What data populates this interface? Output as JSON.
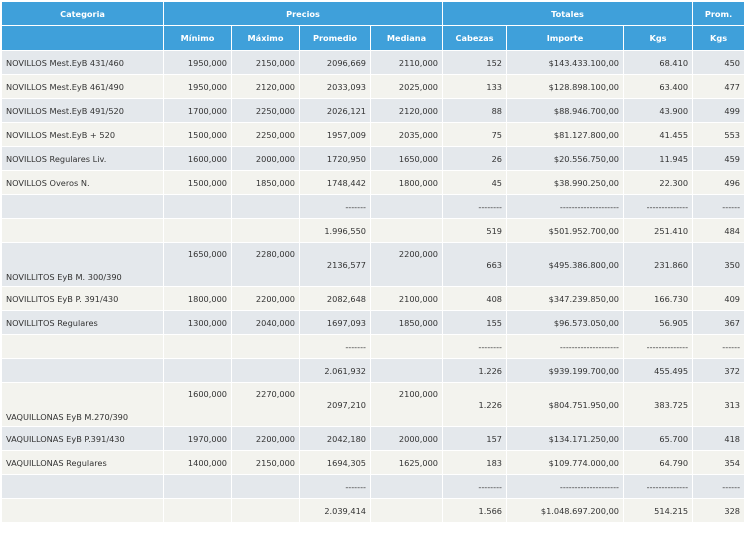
{
  "headers": {
    "categoria": "Categoria",
    "precios": "Precios",
    "totales": "Totales",
    "prom": "Prom.",
    "minimo": "Mínimo",
    "maximo": "Máximo",
    "promedio": "Promedio",
    "mediana": "Mediana",
    "cabezas": "Cabezas",
    "importe": "Importe",
    "kgs": "Kgs",
    "prom_kgs": "Kgs"
  },
  "rows": [
    {
      "cat": "NOVILLOS Mest.EyB 431/460",
      "min": "1950,000",
      "max": "2150,000",
      "prom": "2096,669",
      "med": "2110,000",
      "cab": "152",
      "imp": "$143.433.100,00",
      "kgs": "68.410",
      "pk": "450"
    },
    {
      "cat": "NOVILLOS Mest.EyB 461/490",
      "min": "1950,000",
      "max": "2120,000",
      "prom": "2033,093",
      "med": "2025,000",
      "cab": "133",
      "imp": "$128.898.100,00",
      "kgs": "63.400",
      "pk": "477"
    },
    {
      "cat": "NOVILLOS Mest.EyB 491/520",
      "min": "1700,000",
      "max": "2250,000",
      "prom": "2026,121",
      "med": "2120,000",
      "cab": "88",
      "imp": "$88.946.700,00",
      "kgs": "43.900",
      "pk": "499"
    },
    {
      "cat": "NOVILLOS Mest.EyB + 520",
      "min": "1500,000",
      "max": "2250,000",
      "prom": "1957,009",
      "med": "2035,000",
      "cab": "75",
      "imp": "$81.127.800,00",
      "kgs": "41.455",
      "pk": "553"
    },
    {
      "cat": "NOVILLOS Regulares Liv.",
      "min": "1600,000",
      "max": "2000,000",
      "prom": "1720,950",
      "med": "1650,000",
      "cab": "26",
      "imp": "$20.556.750,00",
      "kgs": "11.945",
      "pk": "459"
    },
    {
      "cat": "NOVILLOS Overos N.",
      "min": "1500,000",
      "max": "1850,000",
      "prom": "1748,442",
      "med": "1800,000",
      "cab": "45",
      "imp": "$38.990.250,00",
      "kgs": "22.300",
      "pk": "496"
    },
    {
      "cat": "",
      "min": "",
      "max": "",
      "prom": "-------",
      "med": "",
      "cab": "--------",
      "imp": "--------------------",
      "kgs": "--------------",
      "pk": "------"
    },
    {
      "cat": "",
      "min": "",
      "max": "",
      "prom": "1.996,550",
      "med": "",
      "cab": "519",
      "imp": "$501.952.700,00",
      "kgs": "251.410",
      "pk": "484"
    },
    {
      "cat": "NOVILLITOS EyB M. 300/390",
      "min": "1650,000",
      "max": "2280,000",
      "prom": "2136,577",
      "med": "2200,000",
      "cab": "663",
      "imp": "$495.386.800,00",
      "kgs": "231.860",
      "pk": "350",
      "tall": true
    },
    {
      "cat": "NOVILLITOS EyB P. 391/430",
      "min": "1800,000",
      "max": "2200,000",
      "prom": "2082,648",
      "med": "2100,000",
      "cab": "408",
      "imp": "$347.239.850,00",
      "kgs": "166.730",
      "pk": "409"
    },
    {
      "cat": "NOVILLITOS Regulares",
      "min": "1300,000",
      "max": "2040,000",
      "prom": "1697,093",
      "med": "1850,000",
      "cab": "155",
      "imp": "$96.573.050,00",
      "kgs": "56.905",
      "pk": "367"
    },
    {
      "cat": "",
      "min": "",
      "max": "",
      "prom": "-------",
      "med": "",
      "cab": "--------",
      "imp": "--------------------",
      "kgs": "--------------",
      "pk": "------"
    },
    {
      "cat": "",
      "min": "",
      "max": "",
      "prom": "2.061,932",
      "med": "",
      "cab": "1.226",
      "imp": "$939.199.700,00",
      "kgs": "455.495",
      "pk": "372"
    },
    {
      "cat": "VAQUILLONAS EyB M.270/390",
      "min": "1600,000",
      "max": "2270,000",
      "prom": "2097,210",
      "med": "2100,000",
      "cab": "1.226",
      "imp": "$804.751.950,00",
      "kgs": "383.725",
      "pk": "313",
      "tall": true
    },
    {
      "cat": "VAQUILLONAS EyB P.391/430",
      "min": "1970,000",
      "max": "2200,000",
      "prom": "2042,180",
      "med": "2000,000",
      "cab": "157",
      "imp": "$134.171.250,00",
      "kgs": "65.700",
      "pk": "418"
    },
    {
      "cat": "VAQUILLONAS Regulares",
      "min": "1400,000",
      "max": "2150,000",
      "prom": "1694,305",
      "med": "1625,000",
      "cab": "183",
      "imp": "$109.774.000,00",
      "kgs": "64.790",
      "pk": "354"
    },
    {
      "cat": "",
      "min": "",
      "max": "",
      "prom": "-------",
      "med": "",
      "cab": "--------",
      "imp": "--------------------",
      "kgs": "--------------",
      "pk": "------"
    },
    {
      "cat": "",
      "min": "",
      "max": "",
      "prom": "2.039,414",
      "med": "",
      "cab": "1.566",
      "imp": "$1.048.697.200,00",
      "kgs": "514.215",
      "pk": "328"
    }
  ]
}
